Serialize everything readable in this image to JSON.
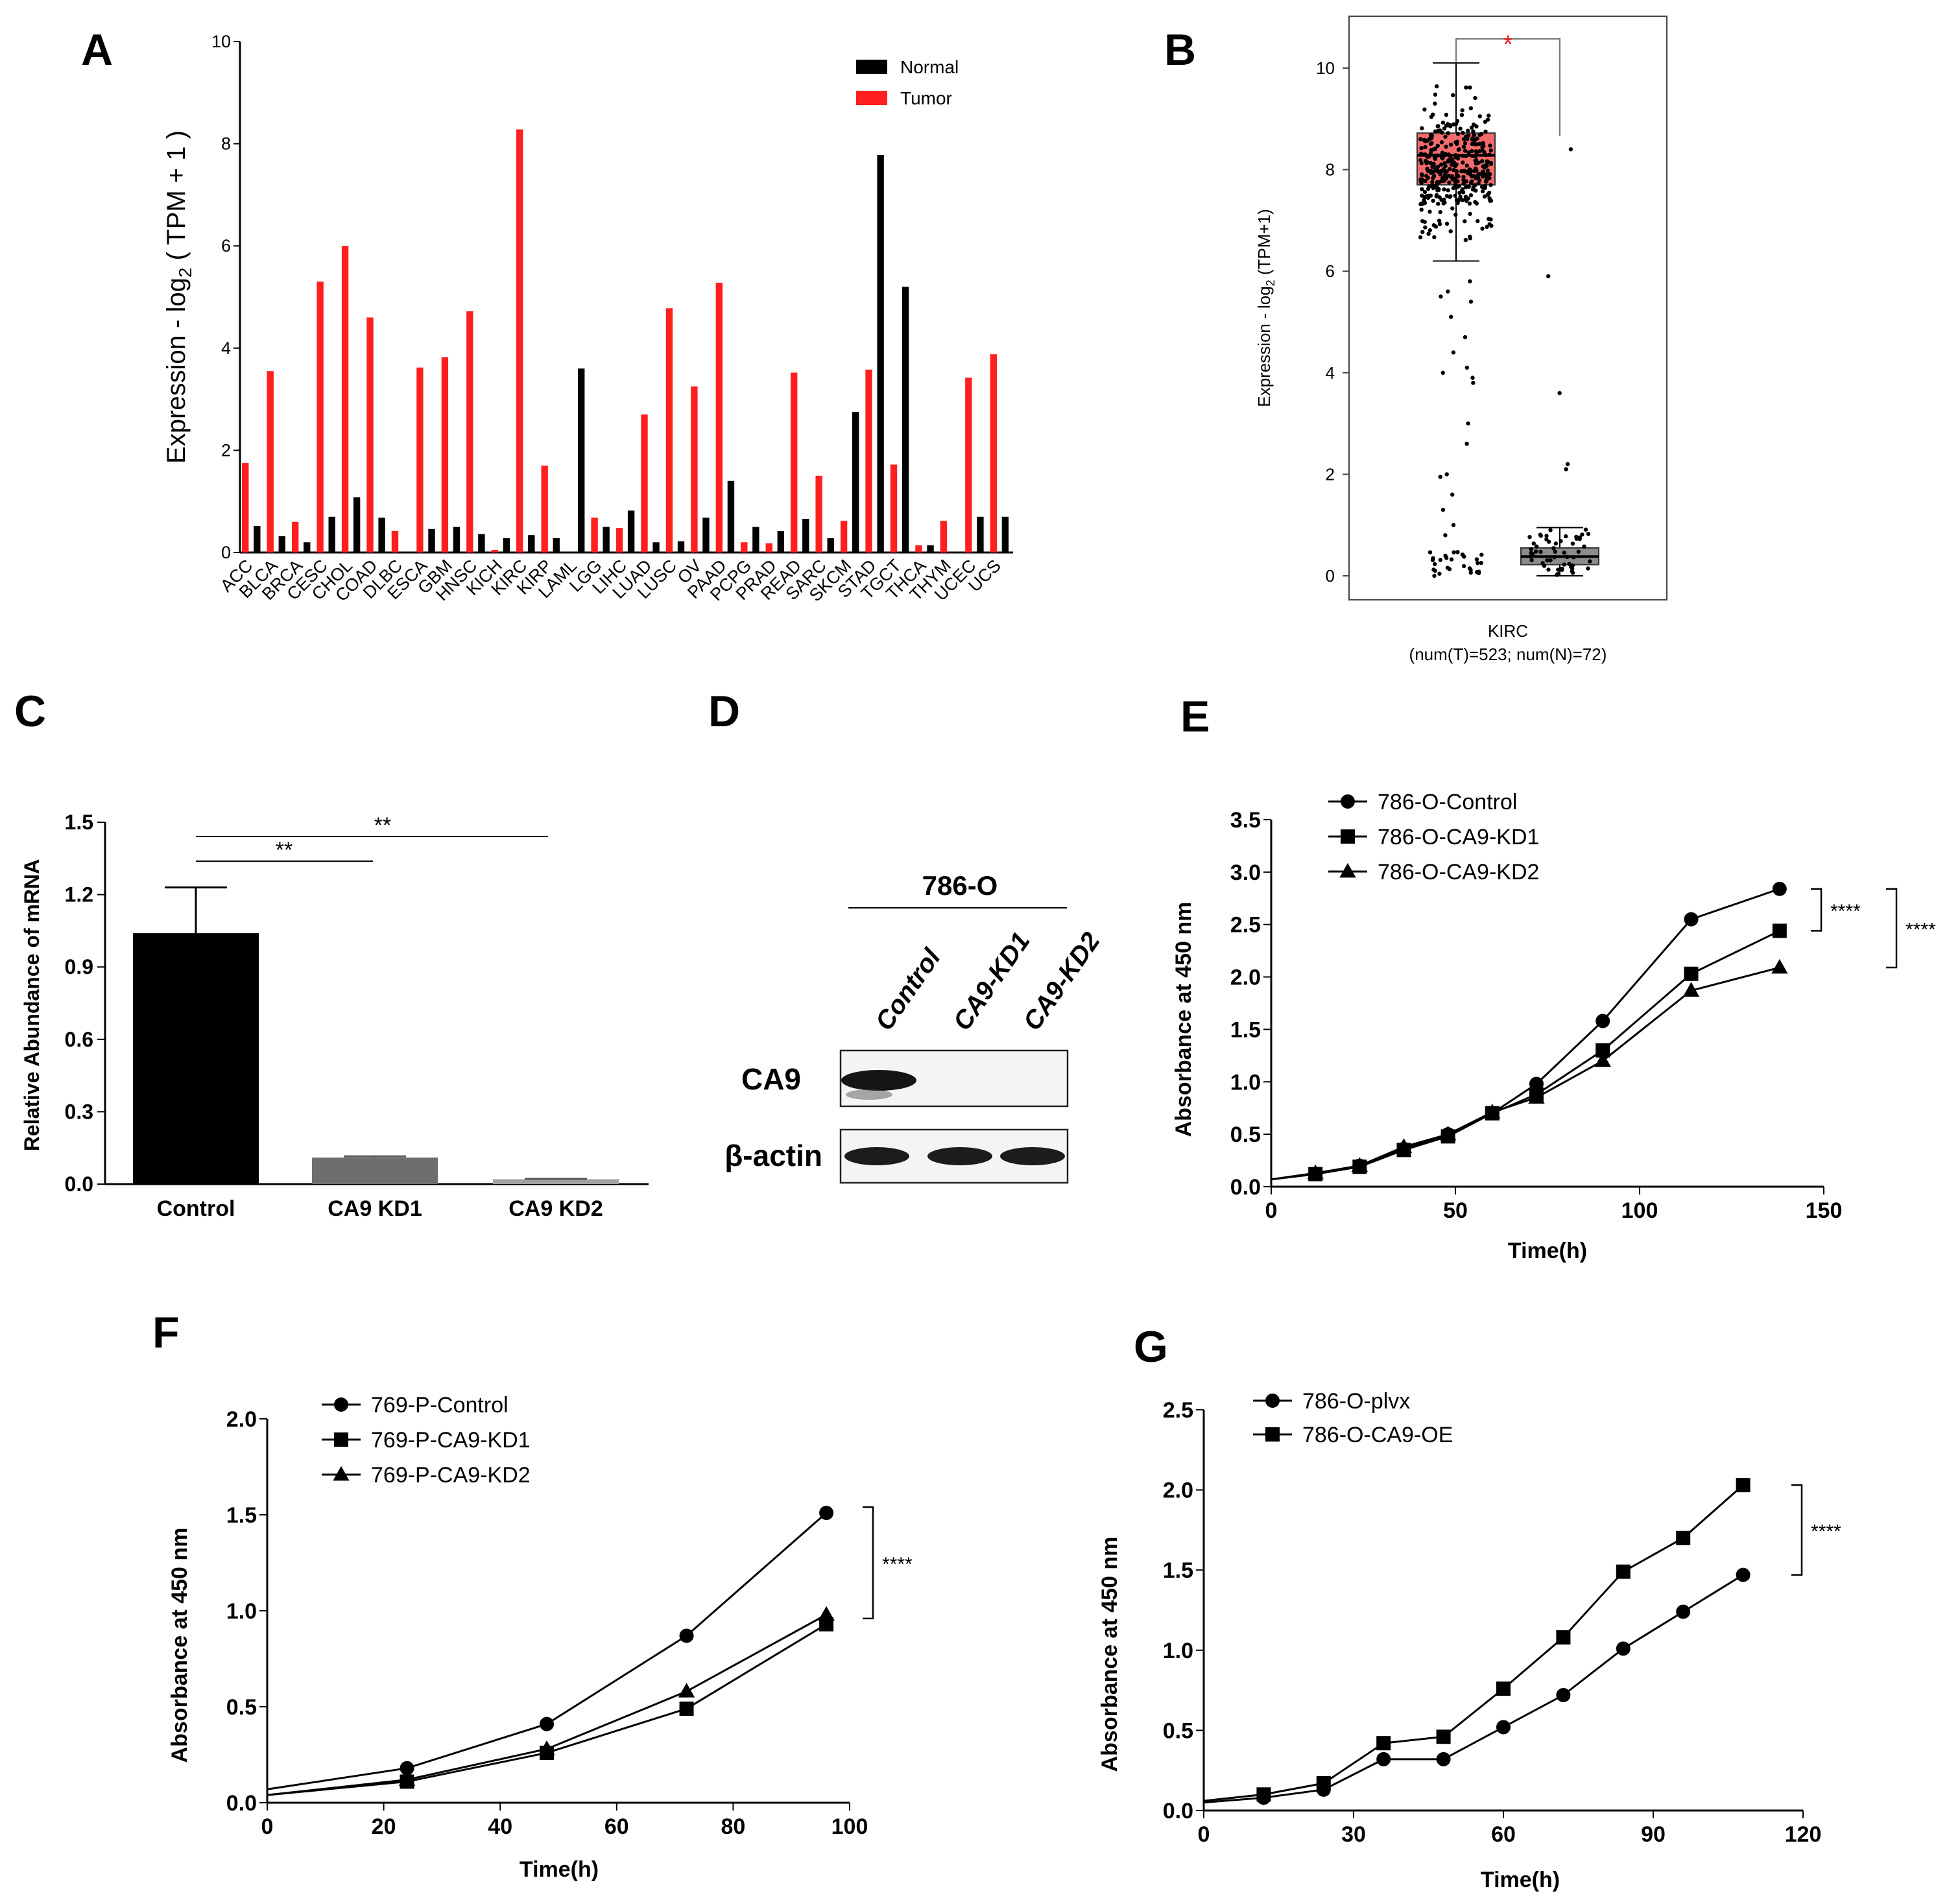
{
  "colors": {
    "normal": "#000000",
    "tumor": "#ff1f1f",
    "box_tumor": "#f26b6b",
    "box_normal": "#8c8c8c",
    "sig_star": "#e8201e",
    "bar_kd1": "#6e6e6e",
    "bar_kd2": "#a0a0a0"
  },
  "chart_data": [
    {
      "panel": "A",
      "type": "bar",
      "ylabel_prefix": "Expression - log",
      "ylabel_sub": "2",
      "ylabel_suffix": " ( TPM + 1 )",
      "ylim": [
        0,
        10
      ],
      "yticks": [
        "0",
        "2",
        "4",
        "6",
        "8",
        "10"
      ],
      "legend": [
        "Normal",
        "Tumor"
      ],
      "legend_position": "top-right",
      "categories": [
        "ACC",
        "BLCA",
        "BRCA",
        "CESC",
        "CHOL",
        "COAD",
        "DLBC",
        "ESCA",
        "GBM",
        "HNSC",
        "KICH",
        "KIRC",
        "KIRP",
        "LAML",
        "LGG",
        "LIHC",
        "LUAD",
        "LUSC",
        "OV",
        "PAAD",
        "PCPG",
        "PRAD",
        "READ",
        "SARC",
        "SKCM",
        "STAD",
        "TGCT",
        "THCA",
        "THYM",
        "UCEC",
        "UCS"
      ],
      "series": [
        {
          "name": "Tumor",
          "values": [
            1.75,
            3.55,
            0.6,
            5.3,
            6.0,
            4.6,
            0.42,
            3.62,
            3.82,
            4.72,
            0.05,
            8.28,
            1.7,
            0,
            0.68,
            0.48,
            2.7,
            4.78,
            3.25,
            5.28,
            0.2,
            0.18,
            3.52,
            1.5,
            0.62,
            3.58,
            1.72,
            0.14,
            0.62,
            3.42,
            3.88
          ]
        },
        {
          "name": "Normal",
          "values": [
            0.52,
            0.32,
            0.2,
            0.7,
            1.08,
            0.68,
            0,
            0.46,
            0.5,
            0.36,
            0.28,
            0.34,
            0.28,
            3.6,
            0.5,
            0.82,
            0.2,
            0.22,
            0.68,
            1.4,
            0.5,
            0.42,
            0.66,
            0.28,
            2.75,
            7.78,
            5.2,
            0.14,
            0,
            0.7,
            0.7
          ]
        }
      ]
    },
    {
      "panel": "B",
      "type": "box",
      "ylabel_prefix": "Expression - log",
      "ylabel_sub": "2",
      "ylabel_suffix": " (TPM+1)",
      "ylim": [
        0,
        10
      ],
      "yticks": [
        "0",
        "2",
        "4",
        "6",
        "8",
        "10"
      ],
      "xlabel": "KIRC",
      "subtitle": "(num(T)=523; num(N)=72)",
      "significance": "*",
      "boxes": [
        {
          "name": "Tumor",
          "q1": 7.7,
          "median": 8.28,
          "q3": 8.72,
          "whisker_low": 6.2,
          "whisker_high": 10.1
        },
        {
          "name": "Normal",
          "q1": 0.22,
          "median": 0.38,
          "q3": 0.55,
          "whisker_low": 0,
          "whisker_high": 0.95
        }
      ],
      "tumor_outliers": [
        5.8,
        5.6,
        5.5,
        5.4,
        5.1,
        4.7,
        4.4,
        4.1,
        4.0,
        3.9,
        3.8,
        3.0,
        2.6,
        2.0,
        1.95,
        1.6,
        1.3,
        1.0,
        0.8
      ],
      "normal_outliers": [
        8.4,
        5.9,
        3.6,
        2.2,
        2.1
      ]
    },
    {
      "panel": "C",
      "type": "bar",
      "ylabel": "Relative Abundance of mRNA",
      "ylim": [
        0,
        1.5
      ],
      "yticks": [
        "0.0",
        "0.3",
        "0.6",
        "0.9",
        "1.2",
        "1.5"
      ],
      "categories": [
        "Control",
        "CA9 KD1",
        "CA9 KD2"
      ],
      "values": [
        1.04,
        0.11,
        0.02
      ],
      "errors": [
        0.19,
        0.005,
        0.002
      ],
      "significance": [
        {
          "from": "Control",
          "to": "CA9 KD1",
          "label": "**"
        },
        {
          "from": "Control",
          "to": "CA9 KD2",
          "label": "**"
        }
      ]
    },
    {
      "panel": "E",
      "type": "line",
      "xlabel": "Time(h)",
      "ylabel": "Absorbance at 450 nm",
      "xlim": [
        0,
        150
      ],
      "ylim": [
        0,
        3.5
      ],
      "xticks": [
        "0",
        "50",
        "100",
        "150"
      ],
      "yticks": [
        "0.0",
        "0.5",
        "1.0",
        "1.5",
        "2.0",
        "2.5",
        "3.0",
        "3.5"
      ],
      "x": [
        0,
        12,
        24,
        36,
        48,
        60,
        72,
        90,
        114,
        138
      ],
      "series": [
        {
          "name": "786-O-Control",
          "marker": "circle",
          "values": [
            0.07,
            0.12,
            0.2,
            0.36,
            0.5,
            0.7,
            0.98,
            1.58,
            2.55,
            2.84
          ]
        },
        {
          "name": "786-O-CA9-KD1",
          "marker": "square",
          "values": [
            0.07,
            0.12,
            0.19,
            0.35,
            0.48,
            0.7,
            0.88,
            1.3,
            2.03,
            2.44
          ]
        },
        {
          "name": "786-O-CA9-KD2",
          "marker": "triangle",
          "values": [
            0.07,
            0.13,
            0.2,
            0.38,
            0.5,
            0.71,
            0.85,
            1.2,
            1.87,
            2.09
          ]
        }
      ],
      "significance": [
        "****",
        "****"
      ]
    },
    {
      "panel": "F",
      "type": "line",
      "xlabel": "Time(h)",
      "ylabel": "Absorbance at 450 nm",
      "xlim": [
        0,
        100
      ],
      "ylim": [
        0,
        2.0
      ],
      "xticks": [
        "0",
        "20",
        "40",
        "60",
        "80",
        "100"
      ],
      "yticks": [
        "0.0",
        "0.5",
        "1.0",
        "1.5",
        "2.0"
      ],
      "x": [
        0,
        24,
        48,
        72,
        96
      ],
      "series": [
        {
          "name": "769-P-Control",
          "marker": "circle",
          "values": [
            0.07,
            0.18,
            0.41,
            0.87,
            1.51
          ]
        },
        {
          "name": "769-P-CA9-KD1",
          "marker": "square",
          "values": [
            0.04,
            0.11,
            0.26,
            0.49,
            0.93
          ]
        },
        {
          "name": "769-P-CA9-KD2",
          "marker": "triangle",
          "values": [
            0.04,
            0.12,
            0.28,
            0.58,
            0.98
          ]
        }
      ],
      "significance": [
        "****"
      ]
    },
    {
      "panel": "G",
      "type": "line",
      "xlabel": "Time(h)",
      "ylabel": "Absorbance at 450 nm",
      "xlim": [
        0,
        120
      ],
      "ylim": [
        0,
        2.5
      ],
      "xticks": [
        "0",
        "30",
        "60",
        "90",
        "120"
      ],
      "yticks": [
        "0.0",
        "0.5",
        "1.0",
        "1.5",
        "2.0",
        "2.5"
      ],
      "x": [
        0,
        12,
        24,
        36,
        48,
        60,
        72,
        84,
        96,
        108
      ],
      "series": [
        {
          "name": "786-O-plvx",
          "marker": "circle",
          "values": [
            0.05,
            0.08,
            0.13,
            0.32,
            0.32,
            0.52,
            0.72,
            1.01,
            1.24,
            1.47
          ]
        },
        {
          "name": "786-O-CA9-OE",
          "marker": "square",
          "values": [
            0.06,
            0.1,
            0.17,
            0.42,
            0.46,
            0.76,
            1.08,
            1.49,
            1.7,
            2.03
          ]
        }
      ],
      "significance": [
        "****"
      ]
    }
  ],
  "panel_d": {
    "cell_line": "786-O",
    "lanes": [
      "Control",
      "CA9-KD1",
      "CA9-KD2"
    ],
    "rows": [
      "CA9",
      "β-actin"
    ]
  },
  "panel_labels": [
    "A",
    "B",
    "C",
    "D",
    "E",
    "F",
    "G"
  ]
}
